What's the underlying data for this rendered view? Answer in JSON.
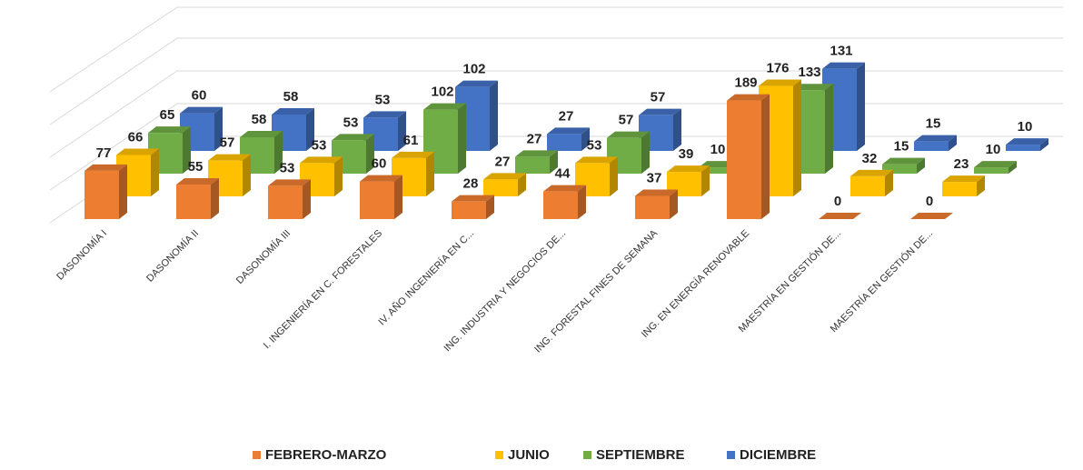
{
  "chart_data": {
    "type": "bar3d",
    "categories": [
      "DASONOMÍA I",
      "DASONOMÍA II",
      "DASONOMÍA III",
      "I. INGENIERÍA EN C. FORESTALES",
      "IV. AÑO INGENIERÍA EN C...",
      "ING. INDUSTRIA Y NEGOCIOS DE...",
      "ING. FORESTAL FINES DE SEMANA",
      "ING. EN ENERGÍA RENOVABLE",
      "MAESTRÍA EN GESTIÓN DE...",
      "MAESTRÍA EN GESTIÓN DE..."
    ],
    "series": [
      {
        "name": "FEBRERO-MARZO",
        "color": "#ed7d31",
        "values": [
          77,
          55,
          53,
          60,
          28,
          44,
          37,
          189,
          0,
          0
        ]
      },
      {
        "name": "JUNIO",
        "color": "#ffc000",
        "values": [
          66,
          57,
          53,
          61,
          27,
          53,
          39,
          176,
          32,
          23
        ]
      },
      {
        "name": "SEPTIEMBRE",
        "color": "#70ad47",
        "values": [
          65,
          58,
          53,
          102,
          27,
          57,
          10,
          133,
          15,
          10
        ]
      },
      {
        "name": "DICIEMBRE",
        "color": "#4472c4",
        "values": [
          60,
          58,
          53,
          102,
          27,
          57,
          null,
          131,
          15,
          10
        ]
      }
    ],
    "ylim": [
      0,
      200
    ]
  }
}
